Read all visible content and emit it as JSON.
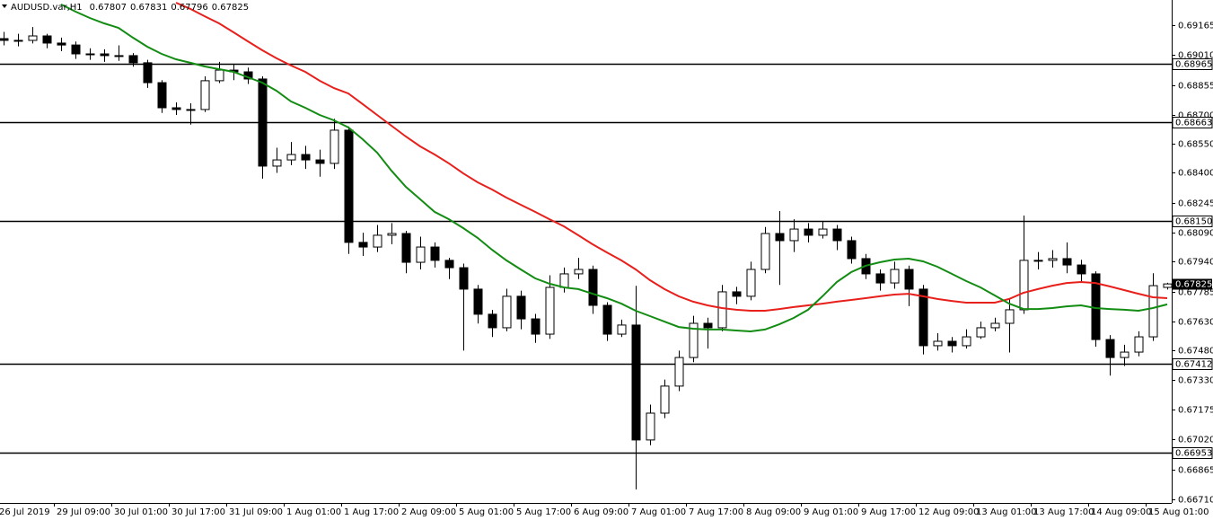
{
  "chart_data": {
    "type": "candlestick",
    "symbol": "AUDUSD.var,H1",
    "header_values": [
      "0.67807",
      "0.67831",
      "0.67796",
      "0.67825"
    ],
    "categories": [
      "26 Jul 2019",
      null,
      null,
      null,
      "29 Jul 09:00",
      null,
      null,
      null,
      "30 Jul 01:00",
      null,
      null,
      null,
      "30 Jul 17:00",
      null,
      null,
      null,
      "31 Jul 09:00",
      null,
      null,
      null,
      "1 Aug 01:00",
      null,
      null,
      null,
      "1 Aug 17:00",
      null,
      null,
      null,
      "2 Aug 09:00",
      null,
      null,
      null,
      "5 Aug 01:00",
      null,
      null,
      null,
      "5 Aug 17:00",
      null,
      null,
      null,
      "6 Aug 09:00",
      null,
      null,
      null,
      "7 Aug 01:00",
      null,
      null,
      null,
      "7 Aug 17:00",
      null,
      null,
      null,
      "8 Aug 09:00",
      null,
      null,
      null,
      "9 Aug 01:00",
      null,
      null,
      null,
      "9 Aug 17:00",
      null,
      null,
      null,
      "12 Aug 09:00",
      null,
      null,
      null,
      "13 Aug 01:00",
      null,
      null,
      null,
      "13 Aug 17:00",
      null,
      null,
      null,
      "14 Aug 09:00",
      null,
      null,
      null,
      "15 Aug 01:00",
      null
    ],
    "open": [
      0.69095,
      0.69086,
      0.69086,
      0.69109,
      0.69072,
      0.69062,
      0.69016,
      0.69016,
      0.69007,
      0.69007,
      0.6897,
      0.68867,
      0.68737,
      0.68728,
      0.68728,
      0.68877,
      0.68932,
      0.68923,
      0.68886,
      0.68435,
      0.68467,
      0.68495,
      0.68467,
      0.68449,
      0.68621,
      0.6804,
      0.68016,
      0.68077,
      0.68086,
      0.67937,
      0.68016,
      0.67947,
      0.67909,
      0.67798,
      0.67668,
      0.67598,
      0.67761,
      0.67644,
      0.67565,
      0.67807,
      0.67877,
      0.679,
      0.67714,
      0.67565,
      0.67612,
      0.67017,
      0.67156,
      0.67296,
      0.67444,
      0.67621,
      0.67598,
      0.67784,
      0.67761,
      0.679,
      0.68086,
      0.68049,
      0.68109,
      0.68077,
      0.68109,
      0.68049,
      0.67956,
      0.67877,
      0.6783,
      0.679,
      0.67798,
      0.67505,
      0.67528,
      0.67505,
      0.67551,
      0.67598,
      0.67621,
      0.67691,
      0.67947,
      0.67947,
      0.67956,
      0.67923,
      0.67877,
      0.67537,
      0.67444,
      0.67472,
      0.67551,
      0.67807
    ],
    "high": [
      0.6913,
      0.6912,
      0.69155,
      0.6912,
      0.691,
      0.6908,
      0.69045,
      0.6904,
      0.6906,
      0.6902,
      0.68985,
      0.6888,
      0.68765,
      0.6876,
      0.689,
      0.68975,
      0.6896,
      0.68945,
      0.689,
      0.6853,
      0.6856,
      0.6854,
      0.6852,
      0.6868,
      0.6864,
      0.6809,
      0.6813,
      0.6814,
      0.681,
      0.6807,
      0.6804,
      0.6796,
      0.6793,
      0.6782,
      0.6769,
      0.678,
      0.6779,
      0.6767,
      0.6787,
      0.6791,
      0.6796,
      0.6792,
      0.6773,
      0.6764,
      0.67815,
      0.672,
      0.6733,
      0.6748,
      0.6766,
      0.6765,
      0.6782,
      0.6781,
      0.6794,
      0.6812,
      0.68202,
      0.6816,
      0.6814,
      0.6815,
      0.6813,
      0.6807,
      0.6798,
      0.679,
      0.6794,
      0.6792,
      0.6782,
      0.6757,
      0.6755,
      0.6759,
      0.6763,
      0.6765,
      0.6775,
      0.68179,
      0.6799,
      0.68,
      0.6804,
      0.6795,
      0.6789,
      0.6756,
      0.6751,
      0.6758,
      0.6788,
      0.67831
    ],
    "low": [
      0.6906,
      0.69055,
      0.6907,
      0.69045,
      0.6903,
      0.6899,
      0.68985,
      0.68975,
      0.6898,
      0.6895,
      0.6884,
      0.6871,
      0.687,
      0.6865,
      0.68715,
      0.68865,
      0.6888,
      0.6886,
      0.6837,
      0.684,
      0.6844,
      0.6842,
      0.6838,
      0.6842,
      0.6798,
      0.6797,
      0.6799,
      0.6803,
      0.6788,
      0.679,
      0.6791,
      0.6785,
      0.6748,
      0.6762,
      0.6755,
      0.6758,
      0.6759,
      0.6752,
      0.6754,
      0.6778,
      0.6785,
      0.6767,
      0.6753,
      0.6755,
      0.66761,
      0.6699,
      0.6713,
      0.6727,
      0.6742,
      0.6749,
      0.6758,
      0.6772,
      0.6774,
      0.6788,
      0.6782,
      0.6799,
      0.6804,
      0.6806,
      0.68,
      0.6793,
      0.6785,
      0.6779,
      0.678,
      0.6771,
      0.6746,
      0.6748,
      0.6747,
      0.6749,
      0.6754,
      0.6758,
      0.6747,
      0.6767,
      0.679,
      0.6791,
      0.6788,
      0.6783,
      0.675,
      0.6735,
      0.674,
      0.6745,
      0.6753,
      0.67796
    ],
    "close": [
      0.69086,
      0.69086,
      0.69109,
      0.69072,
      0.69062,
      0.69016,
      0.69016,
      0.69007,
      0.69007,
      0.6897,
      0.68867,
      0.68737,
      0.68728,
      0.68728,
      0.68877,
      0.68932,
      0.68923,
      0.68886,
      0.68435,
      0.68467,
      0.68495,
      0.68467,
      0.68449,
      0.68621,
      0.6804,
      0.68016,
      0.68077,
      0.68086,
      0.67937,
      0.68016,
      0.67947,
      0.67909,
      0.67798,
      0.67668,
      0.67598,
      0.67761,
      0.67644,
      0.67565,
      0.67807,
      0.67877,
      0.679,
      0.67714,
      0.67565,
      0.67612,
      0.67017,
      0.67156,
      0.67296,
      0.67444,
      0.67621,
      0.67598,
      0.67784,
      0.67761,
      0.679,
      0.68086,
      0.68049,
      0.68109,
      0.68077,
      0.68109,
      0.68049,
      0.67956,
      0.67877,
      0.6783,
      0.679,
      0.67798,
      0.67505,
      0.67528,
      0.67505,
      0.67551,
      0.67598,
      0.67621,
      0.67691,
      0.67947,
      0.67947,
      0.67956,
      0.67923,
      0.67877,
      0.67537,
      0.67444,
      0.67472,
      0.67551,
      0.67816,
      0.67825
    ],
    "up_color": "#ffffff",
    "down_color": "#000000",
    "moving_averages": [
      {
        "color": "#e8201c",
        "values": [
          null,
          null,
          null,
          null,
          null,
          null,
          null,
          null,
          null,
          null,
          null,
          null,
          0.69281,
          0.69249,
          0.69211,
          0.69174,
          0.69128,
          0.69081,
          0.69035,
          0.68993,
          0.68956,
          0.68923,
          0.68877,
          0.68839,
          0.68811,
          0.68756,
          0.687,
          0.68644,
          0.68588,
          0.68537,
          0.68495,
          0.68449,
          0.68397,
          0.68351,
          0.68314,
          0.68272,
          0.68235,
          0.68198,
          0.6816,
          0.68123,
          0.68077,
          0.6803,
          0.67988,
          0.67947,
          0.679,
          0.67844,
          0.67798,
          0.67761,
          0.67733,
          0.67714,
          0.677,
          0.67691,
          0.67686,
          0.67686,
          0.67695,
          0.67705,
          0.67714,
          0.67723,
          0.67733,
          0.67742,
          0.67751,
          0.67761,
          0.6777,
          0.67774,
          0.67761,
          0.67747,
          0.67737,
          0.67728,
          0.67728,
          0.67728,
          0.67747,
          0.67779,
          0.67798,
          0.67816,
          0.6783,
          0.67835,
          0.6783,
          0.67812,
          0.67793,
          0.67774,
          0.67756,
          0.67751
        ]
      },
      {
        "color": "#128c12",
        "values": [
          null,
          null,
          null,
          null,
          0.69272,
          0.69235,
          0.69202,
          0.69174,
          0.69151,
          0.691,
          0.69053,
          0.69016,
          0.68988,
          0.6897,
          0.68951,
          0.68937,
          0.68923,
          0.68895,
          0.68867,
          0.68825,
          0.6877,
          0.68737,
          0.687,
          0.68672,
          0.68635,
          0.68574,
          0.68505,
          0.68411,
          0.68328,
          0.68263,
          0.68198,
          0.6816,
          0.68114,
          0.68063,
          0.68002,
          0.67947,
          0.679,
          0.67854,
          0.67826,
          0.67807,
          0.67798,
          0.67774,
          0.67751,
          0.67723,
          0.67686,
          0.67658,
          0.6763,
          0.67602,
          0.67593,
          0.67589,
          0.67589,
          0.67584,
          0.67579,
          0.67589,
          0.67616,
          0.67649,
          0.67691,
          0.67761,
          0.67835,
          0.67886,
          0.67919,
          0.67937,
          0.67951,
          0.67956,
          0.67942,
          0.67914,
          0.67877,
          0.6784,
          0.67807,
          0.67765,
          0.67723,
          0.67695,
          0.67695,
          0.677,
          0.67709,
          0.67714,
          0.677,
          0.67695,
          0.67691,
          0.67686,
          0.677,
          0.67719
        ]
      }
    ],
    "levels": [
      0.68965,
      0.68663,
      {
        "value": 0.6815,
        "label": "0.68150"
      },
      0.67412,
      0.66953
    ],
    "current_price": 0.67825,
    "ylim": [
      0.66691,
      0.69295
    ],
    "yticks": [
      0.69165,
      {
        "value": 0.6901,
        "label": "0.69010"
      },
      0.68855,
      {
        "value": 0.687,
        "label": "0.68700"
      },
      {
        "value": 0.6855,
        "label": "0.68550"
      },
      {
        "value": 0.684,
        "label": "0.68400"
      },
      0.68245,
      {
        "value": 0.6809,
        "label": "0.68090"
      },
      {
        "value": 0.6794,
        "label": "0.67940"
      },
      0.67785,
      {
        "value": 0.6763,
        "label": "0.67630"
      },
      {
        "value": 0.6748,
        "label": "0.67480"
      },
      {
        "value": 0.6733,
        "label": "0.67330"
      },
      0.67175,
      {
        "value": 0.6702,
        "label": "0.67020"
      },
      0.66865,
      {
        "value": 0.6671,
        "label": "0.66710"
      }
    ]
  }
}
